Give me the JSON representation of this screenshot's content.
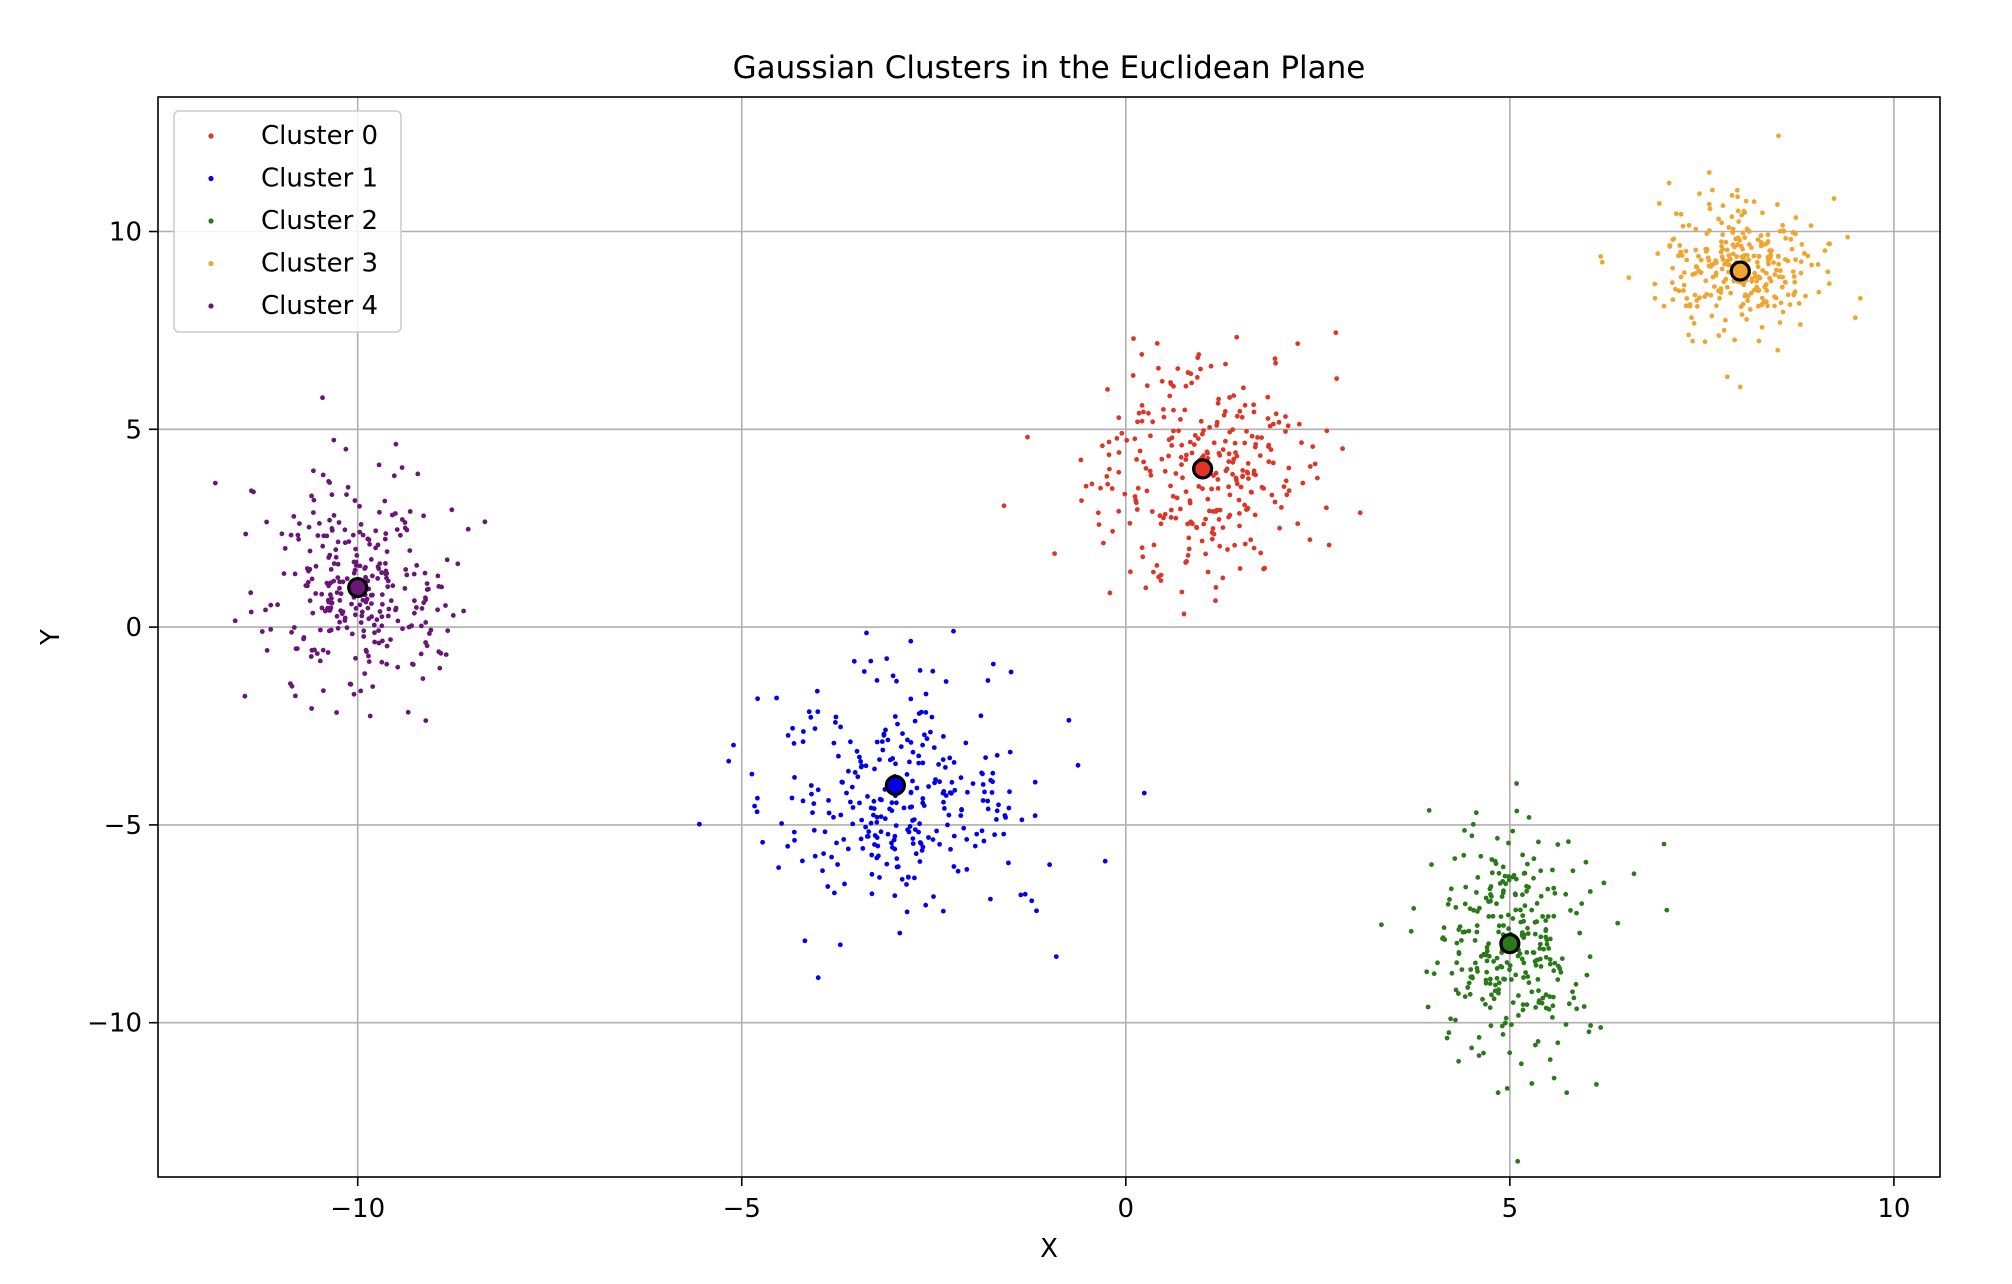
{
  "chart_data": {
    "type": "scatter",
    "title": "Gaussian Clusters in the Euclidean Plane",
    "xlabel": "X",
    "ylabel": "Y",
    "xlim": [
      -12.6,
      10.6
    ],
    "ylim": [
      -13.9,
      13.4
    ],
    "xticks": [
      -10,
      -5,
      0,
      5,
      10
    ],
    "yticks": [
      -10,
      -5,
      0,
      5,
      10
    ],
    "xtick_labels": [
      "−10",
      "−5",
      "0",
      "5",
      "10"
    ],
    "ytick_labels": [
      "−10",
      "−5",
      "0",
      "5",
      "10"
    ],
    "grid": true,
    "legend_position": "top-left",
    "series": [
      {
        "name": "Cluster 0",
        "color": "#e03426",
        "center": [
          1,
          4
        ],
        "spread": [
          0.75,
          1.55
        ],
        "count": 300
      },
      {
        "name": "Cluster 1",
        "color": "#0000ee",
        "center": [
          -3,
          -4
        ],
        "spread": [
          0.95,
          1.55
        ],
        "count": 300
      },
      {
        "name": "Cluster 2",
        "color": "#2a7a1a",
        "center": [
          5,
          -8
        ],
        "spread": [
          0.58,
          1.48
        ],
        "count": 300
      },
      {
        "name": "Cluster 3",
        "color": "#f0a530",
        "center": [
          8,
          9
        ],
        "spread": [
          0.55,
          0.82
        ],
        "count": 300
      },
      {
        "name": "Cluster 4",
        "color": "#6a1578",
        "center": [
          -10,
          1
        ],
        "spread": [
          0.65,
          1.45
        ],
        "count": 300
      }
    ],
    "centroid_style": {
      "edge_color": "#000000"
    }
  }
}
